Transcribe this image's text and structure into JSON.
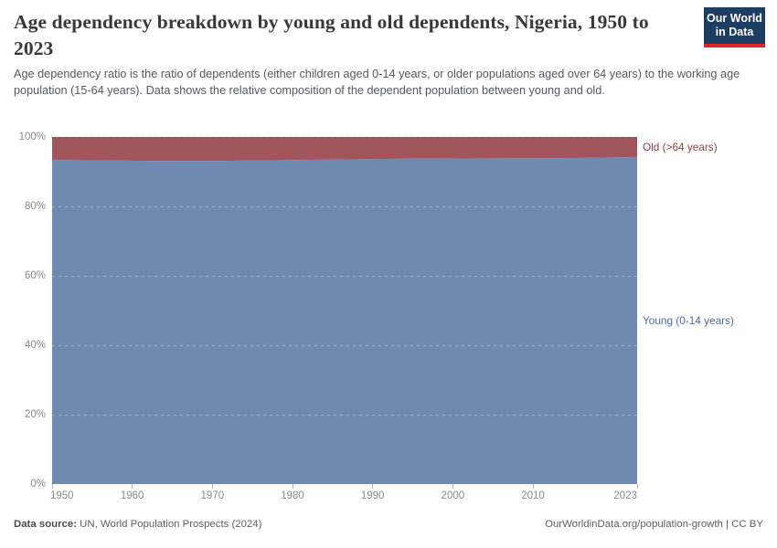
{
  "header": {
    "title": "Age dependency breakdown by young and old dependents, Nigeria, 1950 to 2023",
    "subtitle": "Age dependency ratio is the ratio of dependents (either children aged 0-14 years, or older populations aged over 64 years) to the working age population (15-64 years). Data shows the relative composition of the dependent population between young and old.",
    "logo": {
      "line1": "Our World",
      "line2": "in Data",
      "bg_color": "#1d3d63",
      "bar_color": "#e0252a"
    }
  },
  "chart_data": {
    "type": "area",
    "stacked": true,
    "normalized": true,
    "title": "Age dependency breakdown by young and old dependents, Nigeria, 1950 to 2023",
    "x": [
      1950,
      1955,
      1960,
      1965,
      1970,
      1975,
      1980,
      1985,
      1990,
      1995,
      2000,
      2005,
      2010,
      2015,
      2020,
      2023
    ],
    "series": [
      {
        "name": "Young (0-14 years)",
        "color": "#7089b2",
        "label_color": "#4c6a9b",
        "values": [
          93.4,
          93.3,
          93.15,
          93.1,
          93.1,
          93.2,
          93.35,
          93.5,
          93.65,
          93.75,
          93.8,
          93.85,
          93.9,
          93.95,
          94.1,
          94.2
        ]
      },
      {
        "name": "Old (>64 years)",
        "color": "#a2555c",
        "label_color": "#8f3e46",
        "values": [
          6.6,
          6.7,
          6.85,
          6.9,
          6.9,
          6.8,
          6.65,
          6.5,
          6.35,
          6.25,
          6.2,
          6.15,
          6.1,
          6.05,
          5.9,
          5.8
        ]
      }
    ],
    "xlim": [
      1950,
      2023
    ],
    "ylim": [
      0,
      100
    ],
    "x_ticks": [
      1950,
      1960,
      1970,
      1980,
      1990,
      2000,
      2010,
      2023
    ],
    "y_ticks": [
      0,
      20,
      40,
      60,
      80,
      100
    ],
    "y_tick_suffix": "%",
    "grid": "dashed",
    "legend_position": "right-edge-labels"
  },
  "footer": {
    "source_label": "Data source:",
    "source_value": " UN, World Population Prospects (2024)",
    "link": "OurWorldinData.org/population-growth | CC BY"
  }
}
